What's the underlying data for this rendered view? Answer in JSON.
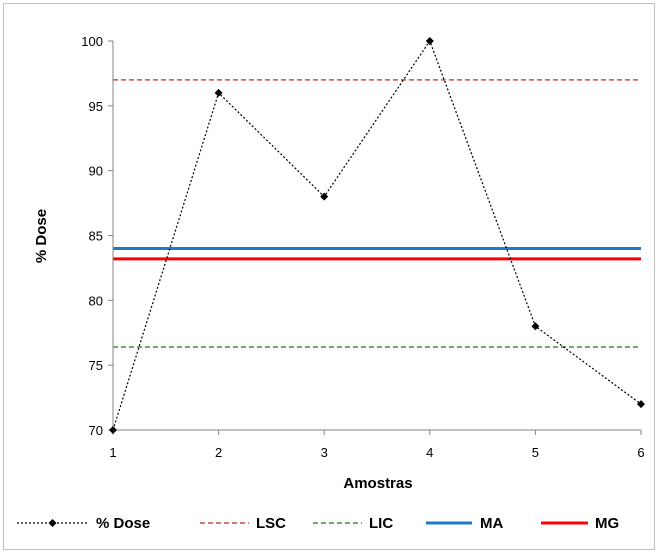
{
  "chart_data": {
    "type": "line",
    "xlabel": "Amostras",
    "ylabel": "% Dose",
    "xlim": [
      1,
      6
    ],
    "ylim": [
      70,
      100
    ],
    "x_ticks": [
      "1",
      "2",
      "3",
      "4",
      "5",
      "6"
    ],
    "y_ticks": [
      "70",
      "75",
      "80",
      "85",
      "90",
      "95",
      "100"
    ],
    "grid": false,
    "legend_position": "bottom",
    "series": [
      {
        "name": "% Dose",
        "style": "dotted-with-diamond-markers",
        "color": "#000000",
        "x": [
          1,
          2,
          3,
          4,
          5,
          6
        ],
        "values": [
          70,
          96,
          88,
          100,
          78,
          72
        ]
      },
      {
        "name": "LSC",
        "style": "dashed-horizontal",
        "color": "#c0504d",
        "value": 97
      },
      {
        "name": "LIC",
        "style": "dashed-horizontal",
        "color": "#339933",
        "value": 76.4
      },
      {
        "name": "MA",
        "style": "solid-horizontal",
        "color": "#1f7ac6",
        "value": 84
      },
      {
        "name": "MG",
        "style": "solid-horizontal",
        "color": "#ff0000",
        "value": 83.2
      }
    ]
  }
}
